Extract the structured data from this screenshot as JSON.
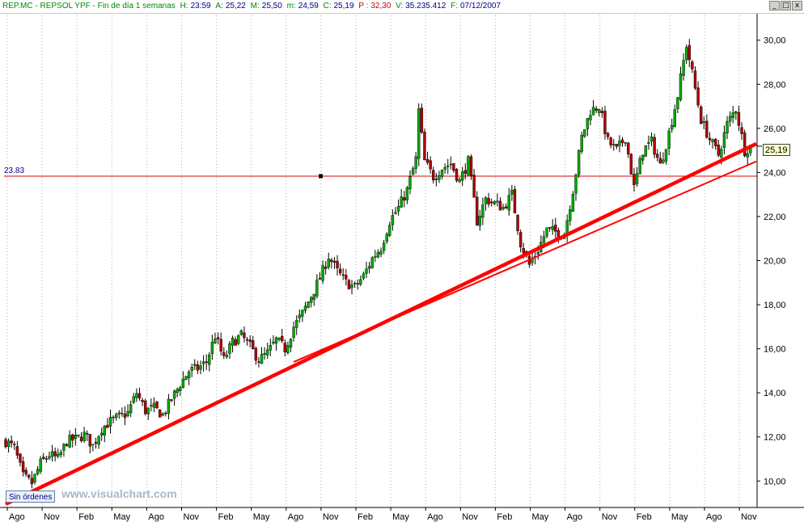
{
  "info_bar": {
    "symbol": "REP.MC - REPSOL YPF - Fin de día 1 semanas",
    "h_label": "H:",
    "h_value": "23:59",
    "a_label": "A:",
    "a_value": "25,22",
    "m_label": "M:",
    "m_value": "25,50",
    "min_label": "m:",
    "min_value": "24,59",
    "c_label": "C:",
    "c_value": "25,19",
    "p_label": "P :",
    "p_value": "32,30",
    "v_label": "V:",
    "v_value": "35.235.412",
    "f_label": "F:",
    "f_value": "07/12/2007"
  },
  "window_controls": {
    "minimize": "_",
    "maximize": "□",
    "close": "x"
  },
  "orders_button": "Sin órdenes",
  "watermark": "www.visualchart.com",
  "price_tag": "25,19",
  "hline_label": "23.83",
  "colors": {
    "up_candle": "#00aa00",
    "down_candle": "#b00000",
    "trendline": "#ff0000",
    "hline": "#e00000",
    "grid": "#b0b0b0"
  },
  "chart_data": {
    "type": "candlestick",
    "title": "",
    "ylim": [
      8.8,
      31.2
    ],
    "y_ticks": [
      "30,00",
      "28,00",
      "26,00",
      "24,00",
      "22,00",
      "20,00",
      "18,00",
      "16,00",
      "14,00",
      "12,00",
      "10,00"
    ],
    "y_tick_values": [
      30,
      28,
      26,
      24,
      22,
      20,
      18,
      16,
      14,
      12,
      10
    ],
    "x_ticks": [
      "Ago",
      "Nov",
      "Feb",
      "May",
      "Ago",
      "Nov",
      "Feb",
      "May",
      "Ago",
      "Nov",
      "Feb",
      "May",
      "Ago",
      "Nov",
      "Feb",
      "May",
      "Ago",
      "Nov",
      "Feb",
      "May",
      "Ago",
      "Nov"
    ],
    "period": "1 semanas",
    "last_close": 25.19,
    "horizontal_line": 23.83,
    "close_path": [
      [
        0,
        11.8
      ],
      [
        3,
        11.5
      ],
      [
        6,
        10.2
      ],
      [
        9,
        9.9
      ],
      [
        12,
        10.8
      ],
      [
        15,
        11.2
      ],
      [
        18,
        11.0
      ],
      [
        21,
        11.8
      ],
      [
        24,
        11.9
      ],
      [
        27,
        12.1
      ],
      [
        30,
        11.6
      ],
      [
        33,
        12.4
      ],
      [
        36,
        12.7
      ],
      [
        39,
        12.9
      ],
      [
        42,
        13.1
      ],
      [
        45,
        14.0
      ],
      [
        48,
        13.2
      ],
      [
        51,
        13.3
      ],
      [
        54,
        13.0
      ],
      [
        57,
        13.7
      ],
      [
        60,
        14.4
      ],
      [
        63,
        15.0
      ],
      [
        66,
        15.1
      ],
      [
        69,
        15.4
      ],
      [
        72,
        16.6
      ],
      [
        75,
        15.5
      ],
      [
        78,
        16.3
      ],
      [
        81,
        16.6
      ],
      [
        84,
        16.1
      ],
      [
        87,
        15.5
      ],
      [
        90,
        15.8
      ],
      [
        93,
        16.4
      ],
      [
        96,
        16.0
      ],
      [
        99,
        17.0
      ],
      [
        102,
        17.6
      ],
      [
        105,
        18.4
      ],
      [
        108,
        19.2
      ],
      [
        111,
        20.2
      ],
      [
        114,
        19.5
      ],
      [
        117,
        19.0
      ],
      [
        120,
        18.8
      ],
      [
        123,
        19.3
      ],
      [
        126,
        20.1
      ],
      [
        129,
        20.6
      ],
      [
        132,
        21.8
      ],
      [
        135,
        22.4
      ],
      [
        138,
        23.2
      ],
      [
        141,
        24.6
      ],
      [
        142,
        26.8
      ],
      [
        144,
        24.5
      ],
      [
        147,
        23.8
      ],
      [
        150,
        24.2
      ],
      [
        153,
        24.4
      ],
      [
        156,
        23.6
      ],
      [
        159,
        24.5
      ],
      [
        162,
        21.8
      ],
      [
        165,
        22.8
      ],
      [
        168,
        22.6
      ],
      [
        171,
        22.4
      ],
      [
        174,
        23.0
      ],
      [
        177,
        20.8
      ],
      [
        180,
        19.8
      ],
      [
        183,
        20.5
      ],
      [
        186,
        21.4
      ],
      [
        189,
        21.3
      ],
      [
        192,
        21.2
      ],
      [
        195,
        23.2
      ],
      [
        198,
        25.6
      ],
      [
        201,
        26.8
      ],
      [
        204,
        27.0
      ],
      [
        207,
        25.4
      ],
      [
        210,
        25.0
      ],
      [
        213,
        25.6
      ],
      [
        216,
        23.3
      ],
      [
        219,
        25.0
      ],
      [
        222,
        25.4
      ],
      [
        225,
        24.3
      ],
      [
        228,
        25.8
      ],
      [
        231,
        27.5
      ],
      [
        234,
        29.8
      ],
      [
        236,
        28.5
      ],
      [
        239,
        26.4
      ],
      [
        242,
        25.5
      ],
      [
        245,
        24.8
      ],
      [
        248,
        26.2
      ],
      [
        251,
        26.9
      ],
      [
        254,
        25.0
      ],
      [
        256,
        25.19
      ]
    ],
    "trendlines": [
      {
        "x": [
          0,
          258
        ],
        "y": [
          8.95,
          25.3
        ]
      },
      {
        "x": [
          99,
          258
        ],
        "y": [
          15.4,
          24.5
        ]
      }
    ]
  }
}
